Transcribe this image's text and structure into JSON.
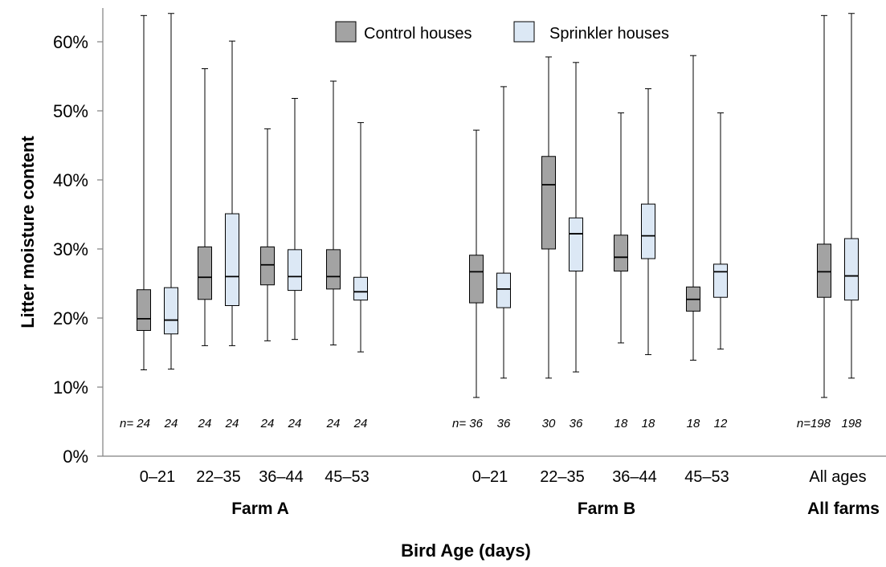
{
  "chart_data": {
    "type": "box",
    "xlabel": "Bird Age (days)",
    "ylabel": "Litter moisture content",
    "ylim": [
      0,
      0.65
    ],
    "yticks": [
      "0%",
      "10%",
      "20%",
      "30%",
      "40%",
      "50%",
      "60%"
    ],
    "legend": [
      {
        "name": "Control houses",
        "color": "#a3a3a3"
      },
      {
        "name": "Sprinkler houses",
        "color": "#dce8f5"
      }
    ],
    "groups": [
      {
        "name": "Farm A",
        "categories": [
          {
            "label": "0–21",
            "control": {
              "min": 0.125,
              "q1": 0.182,
              "median": 0.199,
              "q3": 0.241,
              "max": 0.638,
              "n": "24",
              "n_label": "n= 24"
            },
            "sprinkler": {
              "min": 0.126,
              "q1": 0.177,
              "median": 0.197,
              "q3": 0.244,
              "max": 0.641,
              "n": "24"
            }
          },
          {
            "label": "22–35",
            "control": {
              "min": 0.16,
              "q1": 0.227,
              "median": 0.259,
              "q3": 0.303,
              "max": 0.561,
              "n": "24"
            },
            "sprinkler": {
              "min": 0.16,
              "q1": 0.218,
              "median": 0.26,
              "q3": 0.351,
              "max": 0.601,
              "n": "24"
            }
          },
          {
            "label": "36–44",
            "control": {
              "min": 0.167,
              "q1": 0.248,
              "median": 0.277,
              "q3": 0.303,
              "max": 0.474,
              "n": "24"
            },
            "sprinkler": {
              "min": 0.169,
              "q1": 0.24,
              "median": 0.26,
              "q3": 0.299,
              "max": 0.518,
              "n": "24"
            }
          },
          {
            "label": "45–53",
            "control": {
              "min": 0.161,
              "q1": 0.242,
              "median": 0.26,
              "q3": 0.299,
              "max": 0.543,
              "n": "24"
            },
            "sprinkler": {
              "min": 0.151,
              "q1": 0.226,
              "median": 0.238,
              "q3": 0.259,
              "max": 0.483,
              "n": "24"
            }
          }
        ]
      },
      {
        "name": "Farm B",
        "categories": [
          {
            "label": "0–21",
            "control": {
              "min": 0.085,
              "q1": 0.222,
              "median": 0.267,
              "q3": 0.291,
              "max": 0.472,
              "n": "36",
              "n_label": "n= 36"
            },
            "sprinkler": {
              "min": 0.113,
              "q1": 0.215,
              "median": 0.242,
              "q3": 0.265,
              "max": 0.535,
              "n": "36"
            }
          },
          {
            "label": "22–35",
            "control": {
              "min": 0.113,
              "q1": 0.3,
              "median": 0.393,
              "q3": 0.434,
              "max": 0.578,
              "n": "30"
            },
            "sprinkler": {
              "min": 0.122,
              "q1": 0.268,
              "median": 0.322,
              "q3": 0.345,
              "max": 0.57,
              "n": "36"
            }
          },
          {
            "label": "36–44",
            "control": {
              "min": 0.164,
              "q1": 0.268,
              "median": 0.288,
              "q3": 0.32,
              "max": 0.497,
              "n": "18"
            },
            "sprinkler": {
              "min": 0.147,
              "q1": 0.286,
              "median": 0.319,
              "q3": 0.365,
              "max": 0.532,
              "n": "18"
            }
          },
          {
            "label": "45–53",
            "control": {
              "min": 0.139,
              "q1": 0.21,
              "median": 0.227,
              "q3": 0.245,
              "max": 0.58,
              "n": "18"
            },
            "sprinkler": {
              "min": 0.155,
              "q1": 0.23,
              "median": 0.267,
              "q3": 0.278,
              "max": 0.497,
              "n": "12"
            }
          }
        ]
      },
      {
        "name": "All farms",
        "categories": [
          {
            "label": "All ages",
            "control": {
              "min": 0.085,
              "q1": 0.23,
              "median": 0.267,
              "q3": 0.307,
              "max": 0.638,
              "n": "198",
              "n_label": "n=198"
            },
            "sprinkler": {
              "min": 0.113,
              "q1": 0.226,
              "median": 0.261,
              "q3": 0.315,
              "max": 0.641,
              "n": "198"
            }
          }
        ]
      }
    ]
  }
}
